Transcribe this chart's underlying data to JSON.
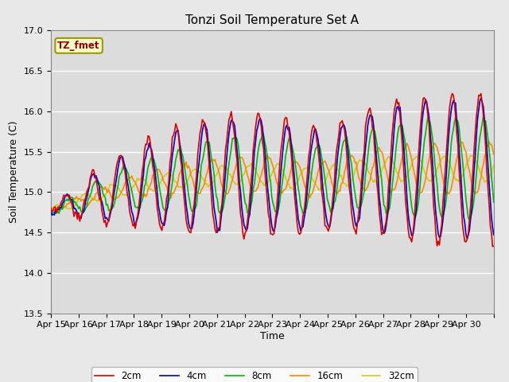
{
  "title": "Tonzi Soil Temperature Set A",
  "xlabel": "Time",
  "ylabel": "Soil Temperature (C)",
  "ylim": [
    13.5,
    17.0
  ],
  "yticks": [
    13.5,
    14.0,
    14.5,
    15.0,
    15.5,
    16.0,
    16.5,
    17.0
  ],
  "x_labels": [
    "Apr 15",
    "Apr 16",
    "Apr 17",
    "Apr 18",
    "Apr 19",
    "Apr 20",
    "Apr 21",
    "Apr 22",
    "Apr 23",
    "Apr 24",
    "Apr 25",
    "Apr 26",
    "Apr 27",
    "Apr 28",
    "Apr 29",
    "Apr 30"
  ],
  "legend_label": "TZ_fmet",
  "series_labels": [
    "2cm",
    "4cm",
    "8cm",
    "16cm",
    "32cm"
  ],
  "series_colors": [
    "#dd0000",
    "#0000cc",
    "#00bb00",
    "#ff8800",
    "#cccc00"
  ],
  "bg_color": "#e8e8e8",
  "plot_bg_color": "#dcdcdc",
  "title_fontsize": 11,
  "label_fontsize": 9,
  "tick_fontsize": 8
}
